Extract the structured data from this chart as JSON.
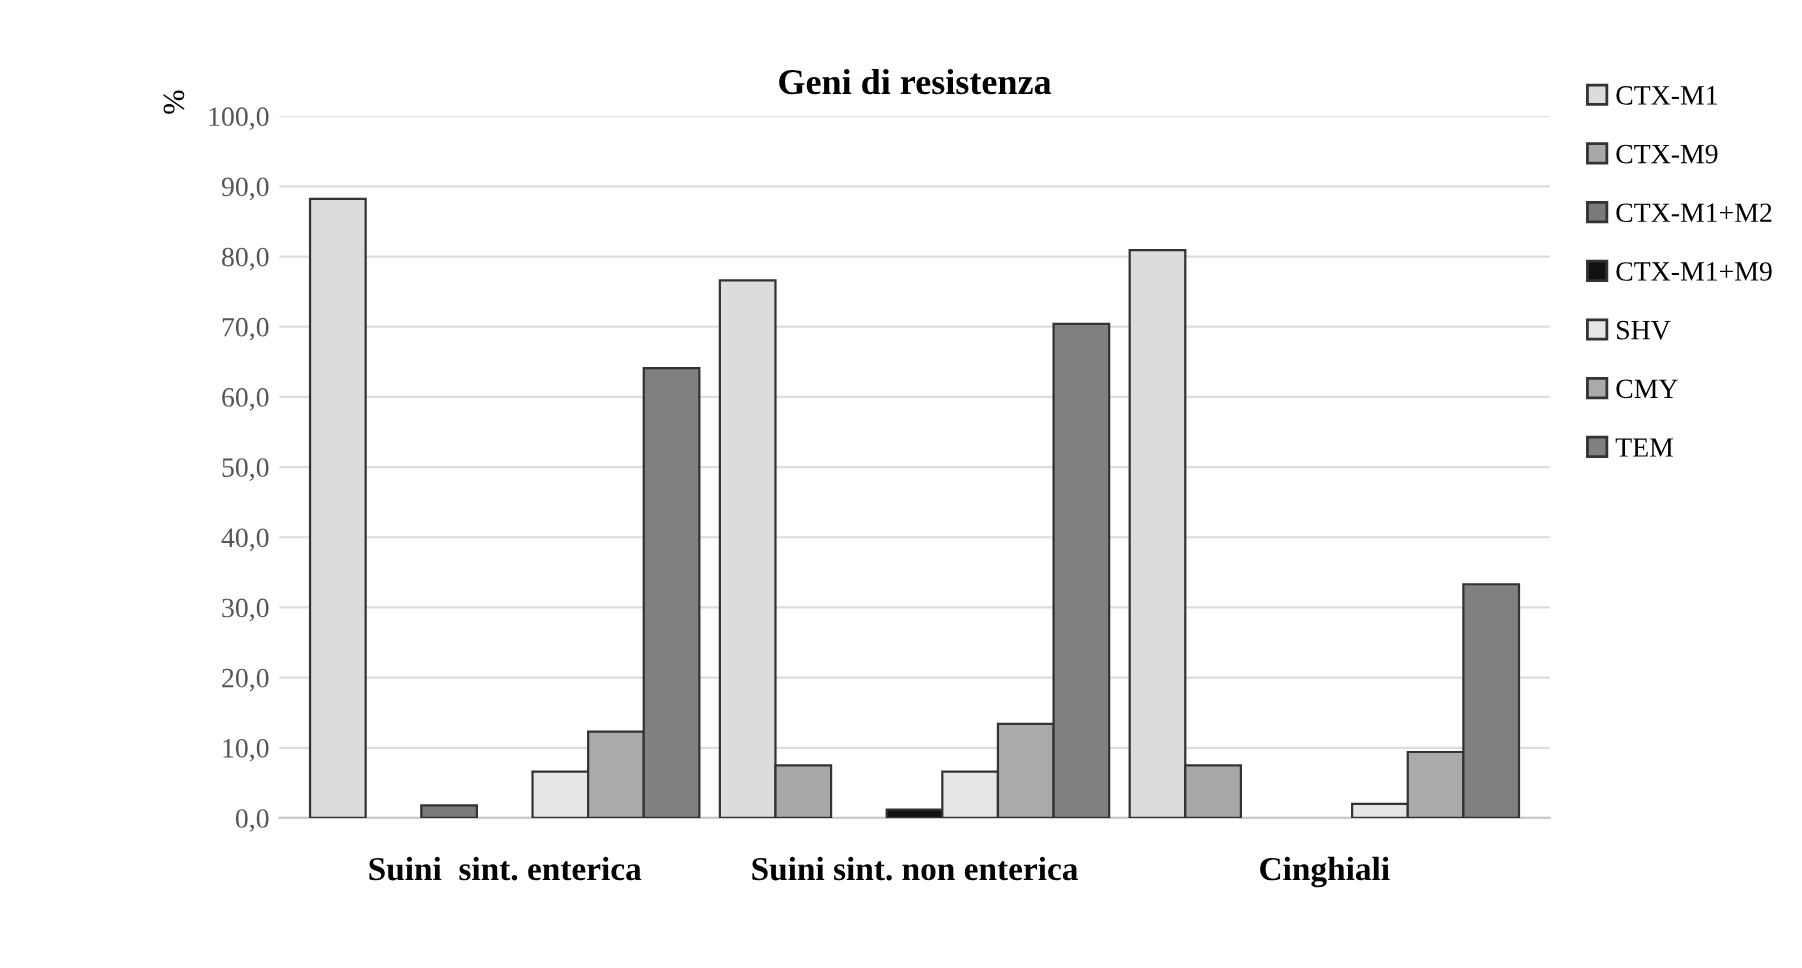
{
  "chart_data": {
    "type": "bar",
    "title": "Geni di resistenza",
    "ylabel": "%",
    "categories": [
      "Suini  sint. enterica",
      "Suini sint. non enterica",
      "Cinghiali"
    ],
    "series": [
      {
        "name": "CTX-M1",
        "color": "#dcdcdc",
        "values": [
          88.2,
          76.6,
          80.9
        ]
      },
      {
        "name": "CTX-M9",
        "color": "#a8a8a8",
        "values": [
          null,
          7.5,
          7.5
        ]
      },
      {
        "name": "CTX-M1+M2",
        "color": "#7a7a7a",
        "values": [
          1.8,
          null,
          null
        ]
      },
      {
        "name": "CTX-M1+M9",
        "color": "#111111",
        "values": [
          null,
          1.2,
          null
        ]
      },
      {
        "name": "SHV",
        "color": "#e6e6e6",
        "values": [
          6.6,
          6.6,
          2.0
        ]
      },
      {
        "name": "CMY",
        "color": "#aaaaaa",
        "values": [
          12.3,
          13.4,
          9.4
        ]
      },
      {
        "name": "TEM",
        "color": "#808080",
        "values": [
          64.1,
          70.4,
          33.3
        ]
      }
    ],
    "ylim": [
      0,
      100
    ],
    "yticks": [
      {
        "value": 0,
        "label": "0,0"
      },
      {
        "value": 10,
        "label": "10,0"
      },
      {
        "value": 20,
        "label": "20,0"
      },
      {
        "value": 30,
        "label": "30,0"
      },
      {
        "value": 40,
        "label": "40,0"
      },
      {
        "value": 50,
        "label": "50,0"
      },
      {
        "value": 60,
        "label": "60,0"
      },
      {
        "value": 70,
        "label": "70,0"
      },
      {
        "value": 80,
        "label": "80,0"
      },
      {
        "value": 90,
        "label": "90,0"
      },
      {
        "value": 100,
        "label": "100,0"
      }
    ],
    "grid": "y",
    "legend": "right"
  }
}
